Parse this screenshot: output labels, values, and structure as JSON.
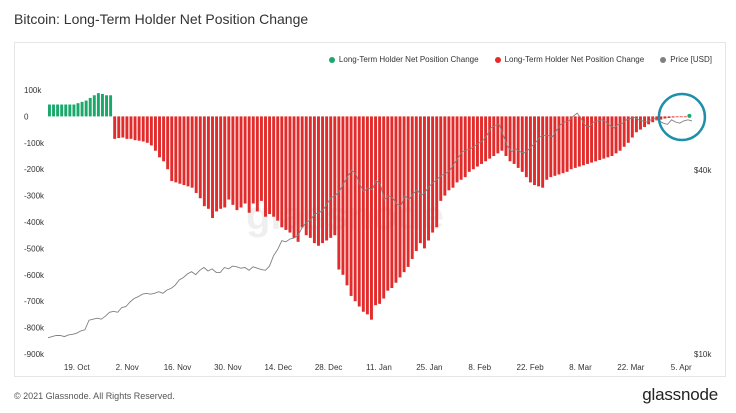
{
  "title": "Bitcoin: Long-Term Holder Net Position Change",
  "legend": [
    {
      "name": "Long-Term Holder Net Position Change",
      "color": "#1aa86b"
    },
    {
      "name": "Long-Term Holder Net Position Change",
      "color": "#e22c2c"
    },
    {
      "name": "Price [USD]",
      "color": "#808080"
    }
  ],
  "footer": "© 2021 Glassnode. All Rights Reserved.",
  "logo": "glassnode",
  "watermark": "glassnode",
  "chart_data": {
    "type": "bar",
    "y_axis_left": {
      "ticks": [
        "100k",
        "0",
        "-100k",
        "-200k",
        "-300k",
        "-400k",
        "-500k",
        "-600k",
        "-700k",
        "-800k",
        "-900k"
      ],
      "range": [
        -900000,
        100000
      ]
    },
    "y_axis_right": {
      "ticks": [
        "$40k",
        "$10k"
      ],
      "scale": "log",
      "range": [
        10000,
        60000
      ]
    },
    "x_axis": {
      "ticks": [
        "19. Oct",
        "2. Nov",
        "16. Nov",
        "30. Nov",
        "14. Dec",
        "28. Dec",
        "11. Jan",
        "25. Jan",
        "8. Feb",
        "22. Feb",
        "8. Mar",
        "22. Mar",
        "5. Apr"
      ],
      "start": "2020-10-11",
      "end": "2021-04-08"
    },
    "series": [
      {
        "name": "Long-Term Holder Net Position Change",
        "kind": "bar",
        "colors": {
          "positive": "#1aa86b",
          "negative": "#e22c2c"
        },
        "values": [
          45000,
          45000,
          45000,
          45000,
          45000,
          45000,
          45000,
          50000,
          55000,
          60000,
          70000,
          80000,
          88000,
          85000,
          80000,
          80000,
          -85000,
          -82000,
          -80000,
          -85000,
          -85000,
          -90000,
          -92000,
          -95000,
          -100000,
          -110000,
          -130000,
          -155000,
          -170000,
          -200000,
          -245000,
          -250000,
          -255000,
          -260000,
          -265000,
          -270000,
          -290000,
          -310000,
          -340000,
          -350000,
          -385000,
          -360000,
          -350000,
          -345000,
          -315000,
          -335000,
          -355000,
          -345000,
          -330000,
          -365000,
          -330000,
          -360000,
          -320000,
          -380000,
          -370000,
          -380000,
          -395000,
          -420000,
          -430000,
          -440000,
          -460000,
          -475000,
          -420000,
          -450000,
          -460000,
          -480000,
          -490000,
          -480000,
          -470000,
          -460000,
          -450000,
          -580000,
          -600000,
          -640000,
          -680000,
          -700000,
          -720000,
          -740000,
          -750000,
          -770000,
          -715000,
          -710000,
          -690000,
          -660000,
          -650000,
          -630000,
          -610000,
          -590000,
          -570000,
          -540000,
          -510000,
          -480000,
          -500000,
          -470000,
          -440000,
          -420000,
          -320000,
          -300000,
          -280000,
          -270000,
          -250000,
          -240000,
          -230000,
          -210000,
          -200000,
          -190000,
          -180000,
          -170000,
          -160000,
          -150000,
          -140000,
          -130000,
          -150000,
          -170000,
          -180000,
          -195000,
          -210000,
          -230000,
          -250000,
          -260000,
          -265000,
          -270000,
          -240000,
          -230000,
          -225000,
          -220000,
          -215000,
          -210000,
          -200000,
          -195000,
          -190000,
          -185000,
          -180000,
          -175000,
          -170000,
          -165000,
          -160000,
          -155000,
          -150000,
          -140000,
          -130000,
          -115000,
          -100000,
          -80000,
          -60000,
          -50000,
          -40000,
          -30000,
          -22000,
          -15000,
          -12000,
          -8000,
          -6000,
          -4000,
          -3000,
          -2000,
          -1000,
          4000
        ]
      },
      {
        "name": "Price [USD]",
        "kind": "line",
        "color": "#808080",
        "values": [
          11300,
          11400,
          11500,
          11500,
          11400,
          11550,
          11600,
          11700,
          11900,
          12000,
          12900,
          13000,
          13100,
          13000,
          13300,
          13700,
          13800,
          13700,
          14200,
          14300,
          14800,
          15200,
          15400,
          15700,
          15800,
          15700,
          15800,
          16000,
          15800,
          16200,
          16400,
          16800,
          17500,
          17800,
          18300,
          18600,
          18200,
          18800,
          19200,
          18700,
          19000,
          18500,
          18500,
          19200,
          19000,
          19400,
          19300,
          19100,
          19200,
          18800,
          19300,
          19100,
          18900,
          18800,
          19400,
          21000,
          22000,
          23500,
          23300,
          23800,
          24000,
          24500,
          26000,
          27000,
          27500,
          28700,
          29000,
          29500,
          31000,
          32500,
          33000,
          34000,
          36000,
          38000,
          40000,
          39000,
          36000,
          34000,
          35000,
          34500,
          37000,
          36000,
          32000,
          33000,
          32500,
          31000,
          30500,
          33000,
          32000,
          33500,
          34500,
          33000,
          34000,
          35500,
          36500,
          37500,
          38500,
          39000,
          40000,
          42000,
          44000,
          46000,
          46500,
          47000,
          48000,
          49000,
          50000,
          52000,
          55000,
          56000,
          56500,
          52000,
          48000,
          46000,
          47000,
          46000,
          45500,
          46500,
          48000,
          49500,
          51500,
          52000,
          52000,
          51500,
          54000,
          56500,
          57500,
          58000,
          60000,
          61500,
          59000,
          56000,
          55500,
          57500,
          58000,
          58500,
          57500,
          56000,
          55000,
          56500,
          57000,
          58500,
          59000,
          59500,
          58500,
          58000,
          57500,
          58500,
          59000,
          58000,
          57000,
          56500,
          58500,
          57500,
          57000,
          58000,
          58500,
          58000
        ]
      }
    ],
    "annotation": "circle highlighting latest values",
    "grid": false
  }
}
